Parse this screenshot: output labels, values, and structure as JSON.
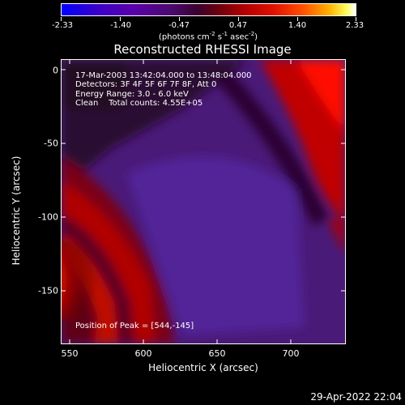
{
  "colorbar": {
    "ticks": [
      "-2.33",
      "-1.40",
      "-0.47",
      "0.47",
      "1.40",
      "2.33"
    ],
    "units_prefix": "(photons cm",
    "units_exp1": "-2",
    "units_mid1": " s",
    "units_exp2": "-1",
    "units_mid2": " asec",
    "units_exp3": "-2",
    "units_suffix": ")"
  },
  "title": "Reconstructed RHESSI Image",
  "annotations": {
    "time_range": "17-Mar-2003 13:42:04.000 to 13:48:04.000",
    "detectors": "Detectors: 3F 4F 5F 6F 7F 8F, Att 0",
    "energy": "Energy Range: 3.0 - 6.0 keV",
    "clean": "Clean    Total counts: 4.55E+05",
    "peak": "Position of Peak = [544,-145]"
  },
  "axes": {
    "xlabel": "Heliocentric X (arcsec)",
    "ylabel": "Heliocentric Y (arcsec)",
    "xticks": [
      "550",
      "600",
      "650",
      "700"
    ],
    "yticks": [
      "0",
      "-50",
      "-100",
      "-150"
    ]
  },
  "datestamp": "29-Apr-2022 22:04",
  "colors": {
    "background": "#000000",
    "low": "#0000ff",
    "mid": "#4a1a80",
    "high": "#ff0000",
    "peak": "#ffffff"
  }
}
